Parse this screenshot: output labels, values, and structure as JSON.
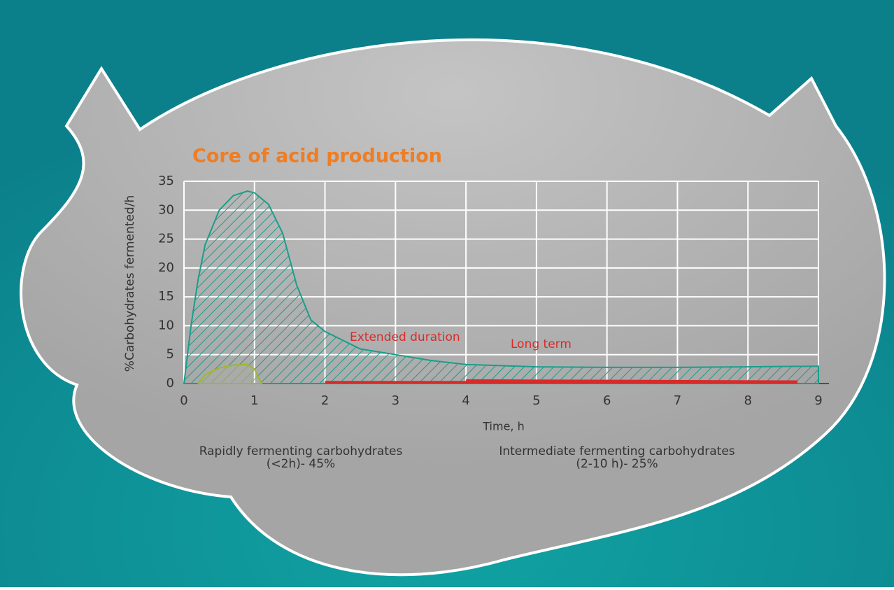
{
  "chart_data": {
    "type": "area",
    "title": "Core of acid production",
    "y_label": "%Carbohydrates fermented/h",
    "x_label": "Time, h",
    "xlim": [
      0,
      9
    ],
    "xticks": [
      0,
      1,
      2,
      3,
      4,
      5,
      6,
      7,
      8,
      9
    ],
    "ylim": [
      0,
      35
    ],
    "yticks": [
      0,
      5,
      10,
      15,
      20,
      25,
      30,
      35
    ],
    "grid": true,
    "series": [
      {
        "color": "#1a9e8a",
        "x": [
          0,
          0.1,
          0.2,
          0.3,
          0.5,
          0.7,
          0.9,
          1.0,
          1.2,
          1.4,
          1.6,
          1.8,
          2,
          2.5,
          3,
          3.5,
          4,
          5,
          6,
          7,
          8,
          9
        ],
        "values": [
          0,
          10,
          18,
          24,
          30,
          32.5,
          33.3,
          33,
          31,
          26,
          17,
          11,
          9,
          6,
          5,
          4,
          3.3,
          2.9,
          2.8,
          2.8,
          2.9,
          3
        ]
      },
      {
        "color": "#9cb82a",
        "x": [
          0.2,
          0.3,
          0.5,
          0.7,
          0.9,
          1.0,
          1.1
        ],
        "values": [
          0,
          1.5,
          2.7,
          3.2,
          3.3,
          2.5,
          0
        ]
      },
      {
        "color": "#d92a2a",
        "x": [
          2,
          8.7
        ],
        "values": [
          0.2,
          0.2
        ]
      },
      {
        "color": "#d92a2a",
        "x": [
          4,
          8.7
        ],
        "values": [
          0.5,
          0.3
        ]
      }
    ],
    "annotations": [
      "Extended duration",
      "Long term"
    ],
    "notes": [
      [
        "Rapidly fermenting carbohydrates",
        "(<2h)- 45%"
      ],
      [
        "Intermediate fermenting carbohydrates",
        "(2-10 h)- 25%"
      ]
    ],
    "title_color": "#f07d22",
    "annotation_color": "#d92a2a"
  }
}
